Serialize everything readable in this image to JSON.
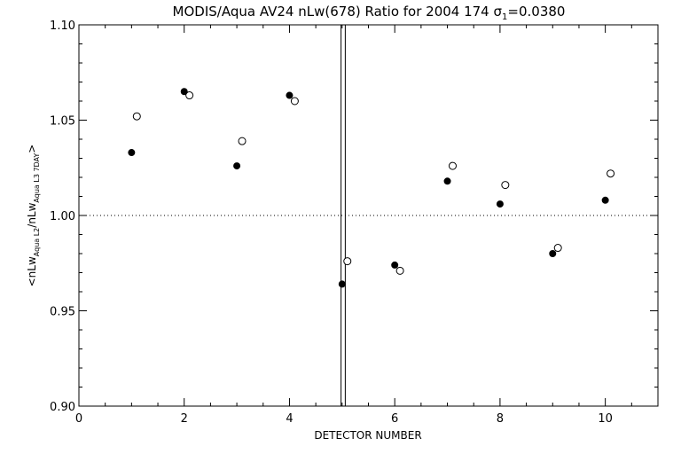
{
  "chart_data": {
    "type": "scatter",
    "title": "MODIS/Aqua AV24 nLw(678) Ratio for 2004 174 σ",
    "title_sub": "1",
    "title_value": "=0.0380",
    "xlabel": "DETECTOR NUMBER",
    "ylabel": {
      "open": "<nLw",
      "sub1": "Aqua L2",
      "mid": "/nLw",
      "sub2": "Aqua L3 7DAY",
      "close": ">"
    },
    "xlim": [
      0,
      11
    ],
    "ylim": [
      0.9,
      1.1
    ],
    "x_ticks": [
      0,
      2,
      4,
      6,
      8,
      10
    ],
    "x_tick_labels": [
      "0",
      "2",
      "4",
      "6",
      "8",
      "10"
    ],
    "y_ticks": [
      0.9,
      0.95,
      1.0,
      1.05,
      1.1
    ],
    "y_tick_labels": [
      "0.90",
      "0.95",
      "1.00",
      "1.05",
      "1.10"
    ],
    "reference_line_y": 1.0,
    "vertical_lines_x": [
      4.98,
      5.06
    ],
    "grid": false,
    "series": [
      {
        "marker": "filled-circle",
        "x": [
          1,
          2,
          3,
          4,
          5,
          6,
          7,
          8,
          9,
          10
        ],
        "y": [
          1.033,
          1.065,
          1.026,
          1.063,
          0.964,
          0.974,
          1.018,
          1.006,
          0.98,
          1.008
        ]
      },
      {
        "marker": "open-circle",
        "x": [
          1.1,
          2.1,
          3.1,
          4.1,
          5.1,
          6.1,
          7.1,
          8.1,
          9.1,
          10.1
        ],
        "y": [
          1.052,
          1.063,
          1.039,
          1.06,
          0.976,
          0.971,
          1.026,
          1.016,
          0.983,
          1.022
        ]
      }
    ]
  }
}
